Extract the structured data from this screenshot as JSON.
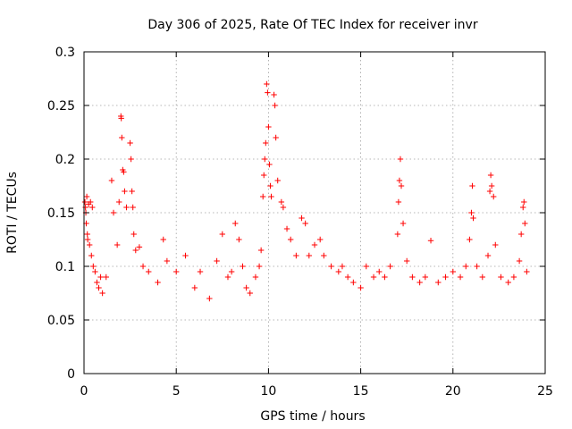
{
  "chart_data": {
    "type": "scatter",
    "title": "Day 306 of 2025, Rate Of TEC Index for receiver invr",
    "xlabel": "GPS time / hours",
    "ylabel": "ROTI / TECUs",
    "xlim": [
      0,
      25
    ],
    "ylim": [
      0,
      0.3
    ],
    "x_ticks": [
      0,
      5,
      10,
      15,
      20,
      25
    ],
    "x_tick_labels": [
      "0",
      "5",
      "10",
      "15",
      "20",
      "25"
    ],
    "y_ticks": [
      0,
      0.05,
      0.1,
      0.15,
      0.2,
      0.25,
      0.3
    ],
    "y_tick_labels": [
      "0",
      "0.05",
      "0.1",
      "0.15",
      "0.2",
      "0.25",
      "0.3"
    ],
    "grid": true,
    "marker": "+",
    "color": "#ff0000",
    "series": [
      {
        "name": "ROTI",
        "points": [
          [
            0.05,
            0.16
          ],
          [
            0.08,
            0.155
          ],
          [
            0.1,
            0.15
          ],
          [
            0.12,
            0.14
          ],
          [
            0.15,
            0.165
          ],
          [
            0.18,
            0.13
          ],
          [
            0.2,
            0.125
          ],
          [
            0.25,
            0.158
          ],
          [
            0.3,
            0.12
          ],
          [
            0.35,
            0.16
          ],
          [
            0.4,
            0.11
          ],
          [
            0.45,
            0.155
          ],
          [
            0.5,
            0.1
          ],
          [
            0.6,
            0.095
          ],
          [
            0.7,
            0.085
          ],
          [
            0.8,
            0.08
          ],
          [
            0.9,
            0.09
          ],
          [
            1.0,
            0.075
          ],
          [
            1.2,
            0.09
          ],
          [
            1.5,
            0.18
          ],
          [
            1.6,
            0.15
          ],
          [
            1.8,
            0.12
          ],
          [
            1.9,
            0.16
          ],
          [
            2.0,
            0.24
          ],
          [
            2.02,
            0.238
          ],
          [
            2.05,
            0.22
          ],
          [
            2.1,
            0.19
          ],
          [
            2.15,
            0.188
          ],
          [
            2.2,
            0.17
          ],
          [
            2.3,
            0.155
          ],
          [
            2.5,
            0.215
          ],
          [
            2.55,
            0.2
          ],
          [
            2.6,
            0.17
          ],
          [
            2.65,
            0.155
          ],
          [
            2.7,
            0.13
          ],
          [
            2.8,
            0.115
          ],
          [
            3.0,
            0.118
          ],
          [
            3.2,
            0.1
          ],
          [
            3.5,
            0.095
          ],
          [
            4.0,
            0.085
          ],
          [
            4.3,
            0.125
          ],
          [
            4.5,
            0.105
          ],
          [
            5.0,
            0.095
          ],
          [
            5.5,
            0.11
          ],
          [
            6.0,
            0.08
          ],
          [
            6.3,
            0.095
          ],
          [
            6.8,
            0.07
          ],
          [
            7.2,
            0.105
          ],
          [
            7.5,
            0.13
          ],
          [
            7.8,
            0.09
          ],
          [
            8.0,
            0.095
          ],
          [
            8.2,
            0.14
          ],
          [
            8.4,
            0.125
          ],
          [
            8.6,
            0.1
          ],
          [
            8.8,
            0.08
          ],
          [
            9.0,
            0.075
          ],
          [
            9.3,
            0.09
          ],
          [
            9.5,
            0.1
          ],
          [
            9.6,
            0.115
          ],
          [
            9.7,
            0.165
          ],
          [
            9.75,
            0.185
          ],
          [
            9.8,
            0.2
          ],
          [
            9.85,
            0.215
          ],
          [
            9.9,
            0.27
          ],
          [
            9.95,
            0.262
          ],
          [
            10.0,
            0.23
          ],
          [
            10.05,
            0.195
          ],
          [
            10.1,
            0.175
          ],
          [
            10.15,
            0.165
          ],
          [
            10.3,
            0.26
          ],
          [
            10.35,
            0.25
          ],
          [
            10.4,
            0.22
          ],
          [
            10.5,
            0.18
          ],
          [
            10.7,
            0.16
          ],
          [
            10.8,
            0.155
          ],
          [
            11.0,
            0.135
          ],
          [
            11.2,
            0.125
          ],
          [
            11.5,
            0.11
          ],
          [
            11.8,
            0.145
          ],
          [
            12.0,
            0.14
          ],
          [
            12.2,
            0.11
          ],
          [
            12.5,
            0.12
          ],
          [
            12.8,
            0.125
          ],
          [
            13.0,
            0.11
          ],
          [
            13.4,
            0.1
          ],
          [
            13.8,
            0.095
          ],
          [
            14.0,
            0.1
          ],
          [
            14.3,
            0.09
          ],
          [
            14.6,
            0.085
          ],
          [
            15.0,
            0.08
          ],
          [
            15.3,
            0.1
          ],
          [
            15.7,
            0.09
          ],
          [
            16.0,
            0.095
          ],
          [
            16.3,
            0.09
          ],
          [
            16.6,
            0.1
          ],
          [
            17.0,
            0.13
          ],
          [
            17.05,
            0.16
          ],
          [
            17.1,
            0.18
          ],
          [
            17.15,
            0.2
          ],
          [
            17.2,
            0.175
          ],
          [
            17.3,
            0.14
          ],
          [
            17.5,
            0.105
          ],
          [
            17.8,
            0.09
          ],
          [
            18.2,
            0.085
          ],
          [
            18.5,
            0.09
          ],
          [
            18.8,
            0.124
          ],
          [
            19.2,
            0.085
          ],
          [
            19.6,
            0.09
          ],
          [
            20.0,
            0.095
          ],
          [
            20.4,
            0.09
          ],
          [
            20.7,
            0.1
          ],
          [
            20.9,
            0.125
          ],
          [
            21.0,
            0.15
          ],
          [
            21.05,
            0.175
          ],
          [
            21.1,
            0.145
          ],
          [
            21.3,
            0.1
          ],
          [
            21.6,
            0.09
          ],
          [
            21.9,
            0.11
          ],
          [
            22.0,
            0.17
          ],
          [
            22.05,
            0.185
          ],
          [
            22.1,
            0.175
          ],
          [
            22.2,
            0.165
          ],
          [
            22.3,
            0.12
          ],
          [
            22.6,
            0.09
          ],
          [
            23.0,
            0.085
          ],
          [
            23.3,
            0.09
          ],
          [
            23.6,
            0.105
          ],
          [
            23.7,
            0.13
          ],
          [
            23.8,
            0.155
          ],
          [
            23.85,
            0.16
          ],
          [
            23.9,
            0.14
          ],
          [
            24.0,
            0.095
          ]
        ]
      }
    ]
  }
}
